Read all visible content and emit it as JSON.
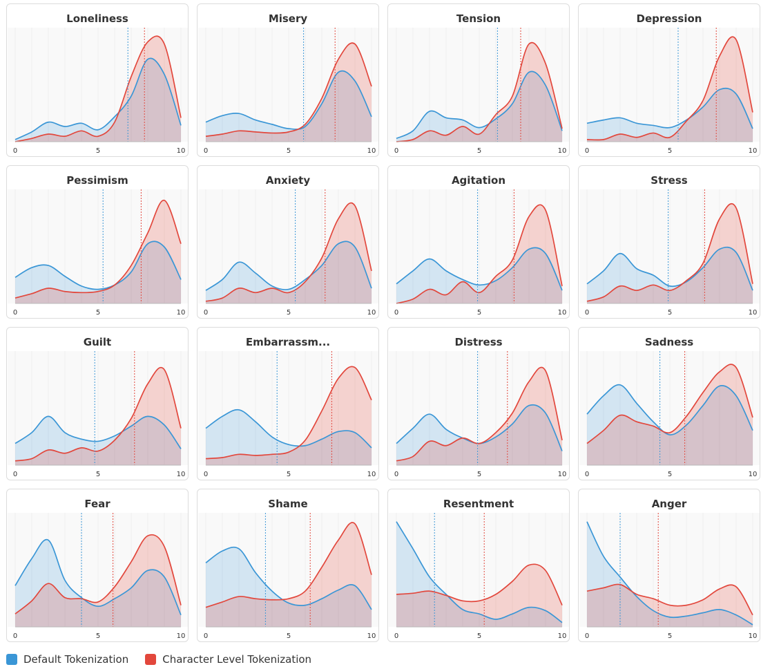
{
  "chart_data": {
    "type": "area",
    "subtype": "density_small_multiples",
    "legend": [
      {
        "name": "Default Tokenization",
        "color": "#3a96d6"
      },
      {
        "name": "Character Level Tokenization",
        "color": "#e2473c"
      }
    ],
    "xlim": [
      0,
      10
    ],
    "x_ticks": [
      0,
      5,
      10
    ],
    "x_tick_labels": [
      "0",
      "5",
      "10"
    ],
    "x": [
      0,
      1,
      2,
      3,
      4,
      5,
      6,
      7,
      8,
      9,
      10
    ],
    "panels": [
      {
        "title": "Loneliness",
        "series": [
          {
            "name": "Default Tokenization",
            "values": [
              0.02,
              0.09,
              0.18,
              0.14,
              0.17,
              0.11,
              0.23,
              0.42,
              0.76,
              0.62,
              0.15
            ],
            "mean": 6.8
          },
          {
            "name": "Character Level Tokenization",
            "values": [
              0.0,
              0.03,
              0.07,
              0.05,
              0.1,
              0.05,
              0.18,
              0.6,
              0.92,
              0.9,
              0.22
            ],
            "mean": 7.8
          }
        ]
      },
      {
        "title": "Misery",
        "series": [
          {
            "name": "Default Tokenization",
            "values": [
              0.18,
              0.24,
              0.26,
              0.2,
              0.16,
              0.12,
              0.14,
              0.35,
              0.64,
              0.56,
              0.23
            ],
            "mean": 5.9
          },
          {
            "name": "Character Level Tokenization",
            "values": [
              0.05,
              0.07,
              0.1,
              0.09,
              0.08,
              0.09,
              0.16,
              0.4,
              0.76,
              0.9,
              0.51
            ],
            "mean": 7.8
          }
        ]
      },
      {
        "title": "Tension",
        "series": [
          {
            "name": "Default Tokenization",
            "values": [
              0.03,
              0.1,
              0.28,
              0.22,
              0.2,
              0.13,
              0.21,
              0.35,
              0.64,
              0.52,
              0.1
            ],
            "mean": 6.1
          },
          {
            "name": "Character Level Tokenization",
            "values": [
              0.0,
              0.02,
              0.1,
              0.06,
              0.14,
              0.07,
              0.25,
              0.42,
              0.9,
              0.72,
              0.12
            ],
            "mean": 7.5
          }
        ]
      },
      {
        "title": "Depression",
        "series": [
          {
            "name": "Default Tokenization",
            "values": [
              0.17,
              0.2,
              0.22,
              0.17,
              0.15,
              0.13,
              0.2,
              0.32,
              0.48,
              0.44,
              0.12
            ],
            "mean": 5.5
          },
          {
            "name": "Character Level Tokenization",
            "values": [
              0.02,
              0.02,
              0.07,
              0.04,
              0.08,
              0.04,
              0.19,
              0.38,
              0.79,
              0.94,
              0.27
            ],
            "mean": 7.8
          }
        ]
      },
      {
        "title": "Pessimism",
        "series": [
          {
            "name": "Default Tokenization",
            "values": [
              0.24,
              0.33,
              0.35,
              0.25,
              0.16,
              0.13,
              0.17,
              0.29,
              0.55,
              0.52,
              0.22
            ],
            "mean": 5.3
          },
          {
            "name": "Character Level Tokenization",
            "values": [
              0.05,
              0.09,
              0.14,
              0.11,
              0.1,
              0.11,
              0.17,
              0.35,
              0.65,
              0.95,
              0.55
            ],
            "mean": 7.6
          }
        ]
      },
      {
        "title": "Anxiety",
        "series": [
          {
            "name": "Default Tokenization",
            "values": [
              0.12,
              0.22,
              0.38,
              0.28,
              0.16,
              0.13,
              0.22,
              0.35,
              0.55,
              0.52,
              0.14
            ],
            "mean": 5.4
          },
          {
            "name": "Character Level Tokenization",
            "values": [
              0.02,
              0.05,
              0.14,
              0.1,
              0.14,
              0.1,
              0.2,
              0.42,
              0.78,
              0.9,
              0.3
            ],
            "mean": 7.2
          }
        ]
      },
      {
        "title": "Agitation",
        "series": [
          {
            "name": "Default Tokenization",
            "values": [
              0.18,
              0.3,
              0.41,
              0.3,
              0.22,
              0.17,
              0.21,
              0.33,
              0.5,
              0.46,
              0.12
            ],
            "mean": 4.9
          },
          {
            "name": "Character Level Tokenization",
            "values": [
              0.0,
              0.04,
              0.13,
              0.08,
              0.2,
              0.1,
              0.25,
              0.4,
              0.8,
              0.86,
              0.16
            ],
            "mean": 7.1
          }
        ]
      },
      {
        "title": "Stress",
        "series": [
          {
            "name": "Default Tokenization",
            "values": [
              0.18,
              0.3,
              0.46,
              0.32,
              0.26,
              0.16,
              0.2,
              0.33,
              0.5,
              0.47,
              0.12
            ],
            "mean": 4.9
          },
          {
            "name": "Character Level Tokenization",
            "values": [
              0.02,
              0.06,
              0.16,
              0.12,
              0.17,
              0.12,
              0.21,
              0.37,
              0.78,
              0.88,
              0.18
            ],
            "mean": 7.1
          }
        ]
      },
      {
        "title": "Guilt",
        "series": [
          {
            "name": "Default Tokenization",
            "values": [
              0.2,
              0.3,
              0.45,
              0.3,
              0.24,
              0.22,
              0.27,
              0.36,
              0.45,
              0.37,
              0.15
            ],
            "mean": 4.8
          },
          {
            "name": "Character Level Tokenization",
            "values": [
              0.04,
              0.06,
              0.14,
              0.11,
              0.16,
              0.13,
              0.23,
              0.43,
              0.75,
              0.88,
              0.34
            ],
            "mean": 7.2
          }
        ]
      },
      {
        "title": "Embarrassm...",
        "series": [
          {
            "name": "Default Tokenization",
            "values": [
              0.34,
              0.45,
              0.51,
              0.4,
              0.26,
              0.19,
              0.18,
              0.24,
              0.31,
              0.3,
              0.16
            ],
            "mean": 4.3
          },
          {
            "name": "Character Level Tokenization",
            "values": [
              0.06,
              0.07,
              0.1,
              0.09,
              0.1,
              0.12,
              0.23,
              0.5,
              0.8,
              0.9,
              0.6
            ],
            "mean": 7.6
          }
        ]
      },
      {
        "title": "Distress",
        "series": [
          {
            "name": "Default Tokenization",
            "values": [
              0.2,
              0.34,
              0.47,
              0.33,
              0.25,
              0.2,
              0.26,
              0.38,
              0.55,
              0.48,
              0.13
            ],
            "mean": 4.9
          },
          {
            "name": "Character Level Tokenization",
            "values": [
              0.04,
              0.08,
              0.22,
              0.18,
              0.25,
              0.2,
              0.3,
              0.48,
              0.77,
              0.87,
              0.23
            ],
            "mean": 6.7
          }
        ]
      },
      {
        "title": "Sadness",
        "series": [
          {
            "name": "Default Tokenization",
            "values": [
              0.47,
              0.64,
              0.74,
              0.57,
              0.4,
              0.28,
              0.37,
              0.55,
              0.73,
              0.64,
              0.32
            ],
            "mean": 4.4
          },
          {
            "name": "Character Level Tokenization",
            "values": [
              0.2,
              0.32,
              0.46,
              0.4,
              0.36,
              0.3,
              0.45,
              0.67,
              0.86,
              0.9,
              0.44
            ],
            "mean": 5.9
          }
        ]
      },
      {
        "title": "Fear",
        "series": [
          {
            "name": "Default Tokenization",
            "values": [
              0.38,
              0.63,
              0.8,
              0.43,
              0.27,
              0.19,
              0.26,
              0.36,
              0.52,
              0.46,
              0.11
            ],
            "mean": 4.0
          },
          {
            "name": "Character Level Tokenization",
            "values": [
              0.12,
              0.24,
              0.4,
              0.27,
              0.26,
              0.23,
              0.37,
              0.6,
              0.84,
              0.74,
              0.2
            ],
            "mean": 5.9
          }
        ]
      },
      {
        "title": "Shame",
        "series": [
          {
            "name": "Default Tokenization",
            "values": [
              0.59,
              0.7,
              0.72,
              0.5,
              0.33,
              0.22,
              0.2,
              0.26,
              0.34,
              0.38,
              0.16
            ],
            "mean": 3.6
          },
          {
            "name": "Character Level Tokenization",
            "values": [
              0.18,
              0.23,
              0.28,
              0.26,
              0.25,
              0.26,
              0.33,
              0.55,
              0.8,
              0.95,
              0.48
            ],
            "mean": 6.3
          }
        ]
      },
      {
        "title": "Resentment",
        "series": [
          {
            "name": "Default Tokenization",
            "values": [
              0.97,
              0.72,
              0.46,
              0.3,
              0.16,
              0.12,
              0.07,
              0.12,
              0.18,
              0.15,
              0.04
            ],
            "mean": 2.3
          },
          {
            "name": "Character Level Tokenization",
            "values": [
              0.3,
              0.31,
              0.33,
              0.29,
              0.24,
              0.24,
              0.3,
              0.42,
              0.57,
              0.52,
              0.2
            ],
            "mean": 5.3
          }
        ]
      },
      {
        "title": "Anger",
        "series": [
          {
            "name": "Default Tokenization",
            "values": [
              0.97,
              0.65,
              0.46,
              0.28,
              0.15,
              0.09,
              0.1,
              0.13,
              0.16,
              0.11,
              0.02
            ],
            "mean": 2.0
          },
          {
            "name": "Character Level Tokenization",
            "values": [
              0.33,
              0.36,
              0.39,
              0.3,
              0.26,
              0.2,
              0.2,
              0.25,
              0.35,
              0.37,
              0.11
            ],
            "mean": 4.3
          }
        ]
      }
    ]
  }
}
